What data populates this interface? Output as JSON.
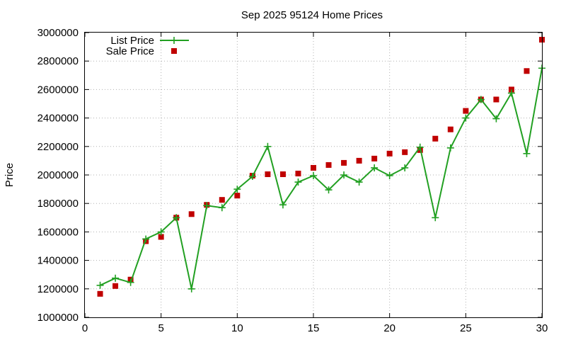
{
  "chart_data": {
    "type": "line",
    "title": "Sep 2025 95124 Home Prices",
    "xlabel": "",
    "ylabel": "Price",
    "xlim": [
      0,
      30
    ],
    "ylim": [
      1000000,
      3000000
    ],
    "xticks": [
      0,
      5,
      10,
      15,
      20,
      25,
      30
    ],
    "yticks": [
      1000000,
      1200000,
      1400000,
      1600000,
      1800000,
      2000000,
      2200000,
      2400000,
      2600000,
      2800000,
      3000000
    ],
    "grid": true,
    "legend_position": "top-left",
    "x": [
      1,
      2,
      3,
      4,
      5,
      6,
      7,
      8,
      9,
      10,
      11,
      12,
      13,
      14,
      15,
      16,
      17,
      18,
      19,
      20,
      21,
      22,
      23,
      24,
      25,
      26,
      27,
      28,
      29,
      30
    ],
    "series": [
      {
        "name": "List Price",
        "style": "line+cross",
        "color": "#22a022",
        "values": [
          1225000,
          1275000,
          1245000,
          1550000,
          1600000,
          1700000,
          1200000,
          1785000,
          1770000,
          1900000,
          1990000,
          2200000,
          1790000,
          1950000,
          1995000,
          1895000,
          2000000,
          1950000,
          2050000,
          1995000,
          2050000,
          2195000,
          1700000,
          2190000,
          2400000,
          2530000,
          2395000,
          2575000,
          2150000,
          2750000
        ]
      },
      {
        "name": "Sale Price",
        "style": "square-marker",
        "color": "#c00000",
        "values": [
          1165000,
          1220000,
          1265000,
          1535000,
          1565000,
          1700000,
          1725000,
          1790000,
          1825000,
          1855000,
          1995000,
          2005000,
          2005000,
          2010000,
          2050000,
          2070000,
          2085000,
          2100000,
          2115000,
          2150000,
          2160000,
          2175000,
          2255000,
          2320000,
          2450000,
          2530000,
          2530000,
          2600000,
          2730000,
          2950000
        ]
      }
    ]
  }
}
